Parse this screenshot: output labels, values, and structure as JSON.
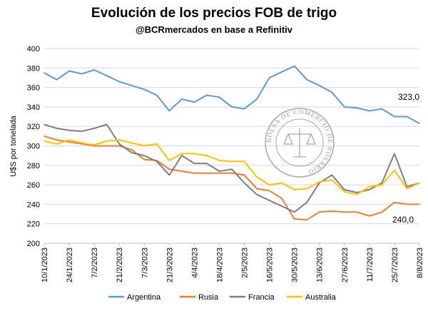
{
  "chart_data": {
    "type": "line",
    "title": "Evolución de los precios FOB de trigo",
    "subtitle": "@BCRmercados en base a Refinitiv",
    "ylabel": "U$S por tonelada",
    "ylim": [
      200,
      400
    ],
    "yticks": [
      200,
      220,
      240,
      260,
      280,
      300,
      320,
      340,
      360,
      380,
      400
    ],
    "x_tick_labels": [
      "10/1/2023",
      "24/1/2023",
      "7/2/2023",
      "21/2/2023",
      "7/3/2023",
      "21/3/2023",
      "4/4/2023",
      "18/4/2023",
      "2/5/2023",
      "16/5/2023",
      "30/5/2023",
      "13/6/2023",
      "27/6/2023",
      "11/7/2023",
      "25/7/2023",
      "8/8/2023"
    ],
    "x_dates": [
      "2023-01-10",
      "2023-01-17",
      "2023-01-24",
      "2023-01-31",
      "2023-02-07",
      "2023-02-14",
      "2023-02-21",
      "2023-02-28",
      "2023-03-07",
      "2023-03-14",
      "2023-03-21",
      "2023-03-28",
      "2023-04-04",
      "2023-04-11",
      "2023-04-18",
      "2023-04-25",
      "2023-05-02",
      "2023-05-09",
      "2023-05-16",
      "2023-05-23",
      "2023-05-30",
      "2023-06-06",
      "2023-06-13",
      "2023-06-20",
      "2023-06-27",
      "2023-07-04",
      "2023-07-11",
      "2023-07-18",
      "2023-07-25",
      "2023-08-01",
      "2023-08-08"
    ],
    "series": [
      {
        "name": "Argentina",
        "color": "#5B9BD5",
        "values": [
          375,
          368,
          377,
          374,
          378,
          372,
          366,
          362,
          358,
          352,
          336,
          348,
          345,
          352,
          350,
          340,
          338,
          348,
          370,
          376,
          382,
          368,
          362,
          355,
          340,
          339,
          336,
          338,
          330,
          330,
          323
        ]
      },
      {
        "name": "Rusia",
        "color": "#ED7D31",
        "values": [
          310,
          306,
          304,
          302,
          300,
          300,
          300,
          296,
          286,
          285,
          276,
          274,
          272,
          272,
          272,
          272,
          270,
          256,
          254,
          246,
          225,
          224,
          232,
          233,
          232,
          232,
          228,
          232,
          242,
          240,
          240
        ]
      },
      {
        "name": "Francia",
        "color": "#7F7F7F",
        "values": [
          322,
          318,
          316,
          315,
          318,
          322,
          302,
          293,
          290,
          284,
          270,
          290,
          282,
          282,
          274,
          276,
          262,
          250,
          244,
          238,
          232,
          242,
          262,
          270,
          255,
          252,
          255,
          262,
          292,
          258,
          262
        ]
      },
      {
        "name": "Australia",
        "color": "#FFC000",
        "values": [
          305,
          302,
          306,
          303,
          301,
          305,
          306,
          303,
          300,
          302,
          285,
          292,
          292,
          290,
          285,
          284,
          284,
          268,
          260,
          262,
          255,
          256,
          263,
          265,
          253,
          250,
          258,
          260,
          275,
          256,
          262
        ]
      }
    ],
    "annotations": [
      {
        "text": "323,0",
        "series": "Argentina"
      },
      {
        "text": "240,0",
        "series": "Rusia"
      }
    ],
    "grid": "horizontal",
    "legend": "bottom"
  },
  "watermark": {
    "text": "BOLSA DE COMERCIO DE ROSARIO",
    "color": "#8a8a8a",
    "icon": "scales-of-justice-icon"
  }
}
